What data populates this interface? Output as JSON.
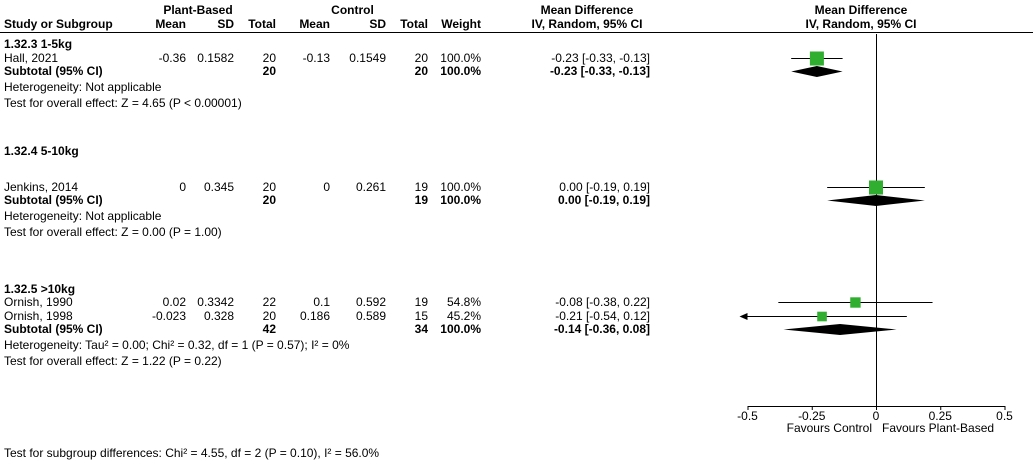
{
  "colors": {
    "square": "#2fae2f",
    "diamond": "#000000",
    "line": "#000000",
    "text": "#000000",
    "background": "#ffffff"
  },
  "header": {
    "group1_label": "Plant-Based",
    "group2_label": "Control",
    "study_col": "Study or Subgroup",
    "mean_col": "Mean",
    "sd_col": "SD",
    "total_col": "Total",
    "weight_col": "Weight",
    "effect_col_text": "Mean Difference",
    "effect_method": "IV, Random, 95% CI"
  },
  "axis": {
    "min": -0.5,
    "max": 0.5,
    "ticks": [
      -0.5,
      -0.25,
      0,
      0.25,
      0.5
    ],
    "tick_labels": [
      "-0.5",
      "-0.25",
      "0",
      "0.25",
      "0.5"
    ],
    "favours_left": "Favours Control",
    "favours_right": "Favours Plant-Based"
  },
  "footer": {
    "subgroup_test": "Test for subgroup differences: Chi² = 4.55, df = 2 (P = 0.10), I² = 56.0%"
  },
  "chart_data": {
    "type": "forest",
    "effect_measure": "Mean Difference",
    "model": "IV, Random, 95% CI",
    "xlim": [
      -0.5,
      0.5
    ],
    "subgroups": [
      {
        "title": "1.32.3 1-5kg",
        "studies": [
          {
            "name": "Hall, 2021",
            "mean_pb": "-0.36",
            "sd_pb": "0.1582",
            "total_pb": "20",
            "mean_c": "-0.13",
            "sd_c": "0.1549",
            "total_c": "20",
            "weight": "100.0%",
            "ci_text": "-0.23 [-0.33, -0.13]",
            "estimate": -0.23,
            "ci_low": -0.33,
            "ci_high": -0.13,
            "weight_pct": 100.0
          }
        ],
        "subtotal": {
          "label": "Subtotal (95% CI)",
          "total_pb": "20",
          "total_c": "20",
          "weight": "100.0%",
          "ci_text": "-0.23 [-0.33, -0.13]",
          "estimate": -0.23,
          "ci_low": -0.33,
          "ci_high": -0.13
        },
        "heterogeneity": "Heterogeneity: Not applicable",
        "overall_effect": "Test for overall effect: Z = 4.65 (P < 0.00001)"
      },
      {
        "title": "1.32.4 5-10kg",
        "studies": [
          {
            "name": "Jenkins, 2014",
            "mean_pb": "0",
            "sd_pb": "0.345",
            "total_pb": "20",
            "mean_c": "0",
            "sd_c": "0.261",
            "total_c": "19",
            "weight": "100.0%",
            "ci_text": "0.00 [-0.19, 0.19]",
            "estimate": 0.0,
            "ci_low": -0.19,
            "ci_high": 0.19,
            "weight_pct": 100.0
          }
        ],
        "subtotal": {
          "label": "Subtotal (95% CI)",
          "total_pb": "20",
          "total_c": "19",
          "weight": "100.0%",
          "ci_text": "0.00 [-0.19, 0.19]",
          "estimate": 0.0,
          "ci_low": -0.19,
          "ci_high": 0.19
        },
        "heterogeneity": "Heterogeneity: Not applicable",
        "overall_effect": "Test for overall effect: Z = 0.00 (P = 1.00)"
      },
      {
        "title": "1.32.5 >10kg",
        "studies": [
          {
            "name": "Ornish, 1990",
            "mean_pb": "0.02",
            "sd_pb": "0.3342",
            "total_pb": "22",
            "mean_c": "0.1",
            "sd_c": "0.592",
            "total_c": "19",
            "weight": "54.8%",
            "ci_text": "-0.08 [-0.38, 0.22]",
            "estimate": -0.08,
            "ci_low": -0.38,
            "ci_high": 0.22,
            "weight_pct": 54.8
          },
          {
            "name": "Ornish, 1998",
            "mean_pb": "-0.023",
            "sd_pb": "0.328",
            "total_pb": "20",
            "mean_c": "0.186",
            "sd_c": "0.589",
            "total_c": "15",
            "weight": "45.2%",
            "ci_text": "-0.21 [-0.54, 0.12]",
            "estimate": -0.21,
            "ci_low": -0.54,
            "ci_high": 0.12,
            "weight_pct": 45.2
          }
        ],
        "subtotal": {
          "label": "Subtotal (95% CI)",
          "total_pb": "42",
          "total_c": "34",
          "weight": "100.0%",
          "ci_text": "-0.14 [-0.36, 0.08]",
          "estimate": -0.14,
          "ci_low": -0.36,
          "ci_high": 0.08
        },
        "heterogeneity": "Heterogeneity: Tau² = 0.00; Chi² = 0.32, df = 1 (P = 0.57); I² = 0%",
        "overall_effect": "Test for overall effect: Z = 1.22 (P = 0.22)"
      }
    ]
  }
}
